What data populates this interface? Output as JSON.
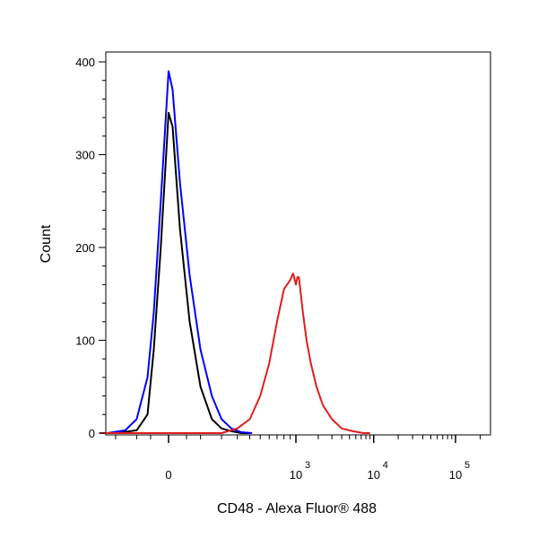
{
  "chart_data": {
    "type": "line",
    "title": "",
    "xlabel": "CD48 - Alexa Fluor® 488",
    "ylabel": "Count",
    "x_scale": "biexponential",
    "ylim": [
      0,
      410
    ],
    "y_ticks": [
      {
        "value": 0,
        "label": "0"
      },
      {
        "value": 100,
        "label": "100"
      },
      {
        "value": 200,
        "label": "200"
      },
      {
        "value": 300,
        "label": "300"
      },
      {
        "value": 400,
        "label": "400"
      }
    ],
    "x_ticks": [
      {
        "value": 0,
        "label": "0",
        "exp": ""
      },
      {
        "value": 1000,
        "label": "10",
        "exp": "3"
      },
      {
        "value": 10000,
        "label": "10",
        "exp": "4"
      },
      {
        "value": 100000,
        "label": "10",
        "exp": "5"
      }
    ],
    "grid": false,
    "legend": "none",
    "series": [
      {
        "color": "#000000",
        "x": [
          -200,
          -100,
          -60,
          -40,
          -20,
          0,
          10,
          30,
          60,
          100,
          150,
          200,
          260,
          330,
          400
        ],
        "y": [
          0,
          3,
          20,
          90,
          200,
          345,
          330,
          220,
          120,
          50,
          15,
          5,
          2,
          0,
          0
        ]
      },
      {
        "color": "#0000ff",
        "x": [
          -250,
          -150,
          -100,
          -60,
          -40,
          -20,
          0,
          10,
          30,
          60,
          100,
          150,
          200,
          260,
          330,
          420
        ],
        "y": [
          0,
          3,
          15,
          60,
          130,
          250,
          390,
          370,
          270,
          170,
          90,
          40,
          15,
          5,
          1,
          0
        ]
      },
      {
        "color": "#e01e1e",
        "x": [
          -300,
          0,
          200,
          300,
          400,
          500,
          600,
          700,
          800,
          900,
          950,
          1000,
          1050,
          1100,
          1150,
          1250,
          1400,
          1600,
          1900,
          2300,
          3000,
          4000,
          5500,
          7500,
          9000
        ],
        "y": [
          0,
          0,
          0,
          5,
          15,
          40,
          75,
          120,
          155,
          165,
          172,
          160,
          168,
          168,
          155,
          130,
          100,
          75,
          50,
          30,
          15,
          5,
          2,
          0,
          0
        ]
      }
    ]
  }
}
